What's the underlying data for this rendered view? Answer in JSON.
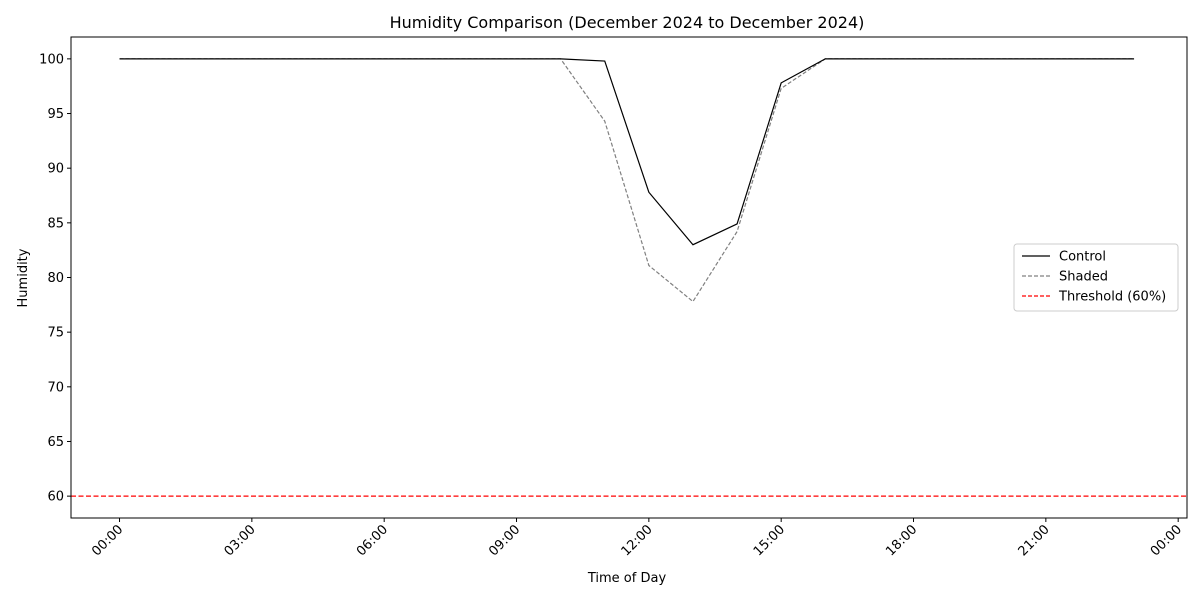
{
  "chart_data": {
    "type": "line",
    "title": "Humidity Comparison (December 2024 to December 2024)",
    "xlabel": "Time of Day",
    "ylabel": "Humidity",
    "x_unit": "hours",
    "x": [
      0,
      1,
      2,
      3,
      4,
      5,
      6,
      7,
      8,
      9,
      10,
      11,
      12,
      13,
      14,
      15,
      16,
      17,
      18,
      19,
      20,
      21,
      22,
      23
    ],
    "xlim": [
      -1.1,
      24.2
    ],
    "ylim": [
      58,
      102
    ],
    "x_ticks": [
      0,
      3,
      6,
      9,
      12,
      15,
      18,
      21,
      24
    ],
    "x_tick_labels": [
      "00:00",
      "03:00",
      "06:00",
      "09:00",
      "12:00",
      "15:00",
      "18:00",
      "21:00",
      "00:00"
    ],
    "y_ticks": [
      60,
      65,
      70,
      75,
      80,
      85,
      90,
      95,
      100
    ],
    "y_tick_labels": [
      "60",
      "65",
      "70",
      "75",
      "80",
      "85",
      "90",
      "95",
      "100"
    ],
    "grid": false,
    "legend_position": "right",
    "series": [
      {
        "name": "Control",
        "color": "#000000",
        "style": "solid",
        "values": [
          100,
          100,
          100,
          100,
          100,
          100,
          100,
          100,
          100,
          100,
          100,
          99.8,
          87.8,
          83.0,
          84.9,
          97.8,
          100,
          100,
          100,
          100,
          100,
          100,
          100,
          100
        ]
      },
      {
        "name": "Shaded",
        "color": "#808080",
        "style": "dashed",
        "values": [
          100,
          100,
          100,
          100,
          100,
          100,
          100,
          100,
          100,
          100,
          100,
          94.3,
          81.1,
          77.8,
          84.2,
          97.3,
          100,
          100,
          100,
          100,
          100,
          100,
          100,
          100
        ]
      }
    ],
    "threshold": {
      "name": "Threshold (60%)",
      "value": 60,
      "color": "#ff0000",
      "style": "dashed"
    }
  }
}
